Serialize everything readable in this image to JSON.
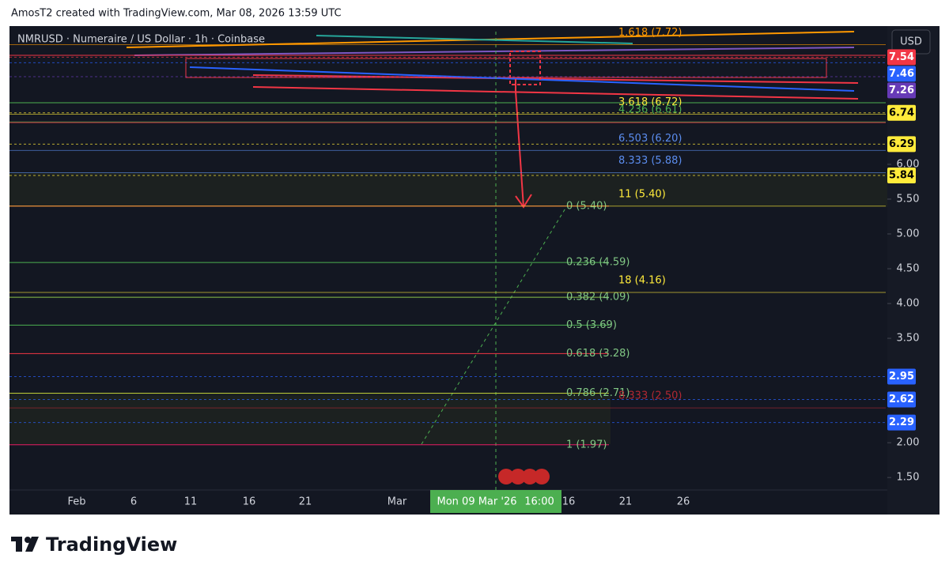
{
  "header": {
    "text": "AmosT2 created with TradingView.com, Mar 08, 2026 13:59 UTC"
  },
  "footer": {
    "logo": "TradingView"
  },
  "chart_data": {
    "type": "levels",
    "title": "NMRUSD · Numeraire / US Dollar · 1h · Coinbase",
    "currency": "USD",
    "ylim": [
      1.32,
      7.93
    ],
    "yticks": [
      {
        "value": 6,
        "label": "6.00"
      },
      {
        "value": 5.5,
        "label": "5.50"
      },
      {
        "value": 5,
        "label": "5.00"
      },
      {
        "value": 4.5,
        "label": "4.50"
      },
      {
        "value": 4,
        "label": "4.00"
      },
      {
        "value": 3.5,
        "label": "3.50"
      },
      {
        "value": 2,
        "label": "2.00"
      },
      {
        "value": 1.5,
        "label": "1.50"
      }
    ],
    "categories": [
      "Feb",
      "6",
      "11",
      "16",
      "21",
      "Mar",
      "16",
      "21",
      "26"
    ],
    "crosshair": {
      "date": "Mon 09 Mar '26",
      "time": "16:00"
    },
    "retracement": [
      {
        "value": 5.4,
        "label": "0 (5.40)",
        "color": "#f23645"
      },
      {
        "value": 4.59,
        "label": "0.236 (4.59)",
        "color": "#4caf50"
      },
      {
        "value": 4.09,
        "label": "0.382 (4.09)",
        "color": "#8bc34a"
      },
      {
        "value": 3.69,
        "label": "0.5 (3.69)",
        "color": "#4caf50"
      },
      {
        "value": 3.28,
        "label": "0.618 (3.28)",
        "color": "#f23645"
      },
      {
        "value": 2.71,
        "label": "0.786 (2.71)",
        "color": "#cddc39"
      },
      {
        "value": 1.97,
        "label": "1 (1.97)",
        "color": "#e91e63"
      }
    ],
    "extension": [
      {
        "value": 7.72,
        "label": "1.618 (7.72)",
        "color": "#ff9800"
      },
      {
        "value": 6.72,
        "label": "3.618 (6.72)",
        "color": "#ffeb3b"
      },
      {
        "value": 6.61,
        "label": "4.236 (6.61)",
        "color": "#4caf50"
      },
      {
        "value": 6.2,
        "label": "6.503 (6.20)",
        "color": "#5b8def"
      },
      {
        "value": 5.88,
        "label": "8.333 (5.88)",
        "color": "#5b8def"
      },
      {
        "value": 5.4,
        "label": "11 (5.40)",
        "color": "#ffeb3b"
      },
      {
        "value": 4.16,
        "label": "18 (4.16)",
        "color": "#ffeb3b"
      },
      {
        "value": 2.5,
        "label": "8.333 (2.50)",
        "color": "#b22833"
      }
    ],
    "price_badges": [
      {
        "value": 7.54,
        "color": "#f23645"
      },
      {
        "value": 7.46,
        "color": "#2962ff"
      },
      {
        "value": 7.26,
        "color": "#673ab7"
      },
      {
        "value": 6.74,
        "color": "#ffeb3b"
      },
      {
        "value": 6.29,
        "color": "#ffeb3b"
      },
      {
        "value": 5.84,
        "color": "#ffeb3b"
      },
      {
        "value": 2.95,
        "color": "#2962ff"
      },
      {
        "value": 2.62,
        "color": "#2962ff"
      },
      {
        "value": 2.29,
        "color": "#2962ff"
      }
    ]
  }
}
